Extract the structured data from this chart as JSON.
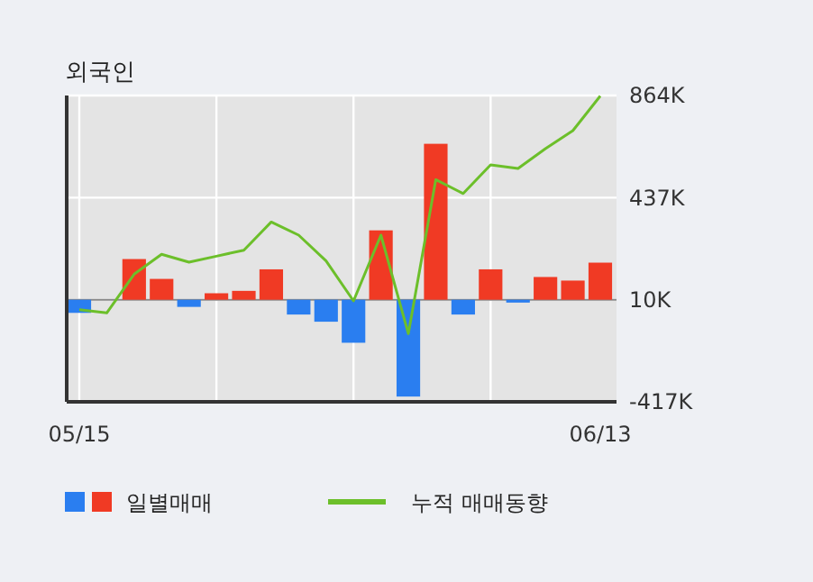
{
  "chart_data": {
    "type": "bar",
    "title": "외국인",
    "categories": [
      "05/15",
      null,
      null,
      null,
      null,
      null,
      null,
      null,
      null,
      null,
      null,
      null,
      null,
      null,
      null,
      null,
      null,
      null,
      null,
      "06/13"
    ],
    "series": [
      {
        "name": "일별매매",
        "colors": [
          "#2a7ef0",
          "#2a7ef0",
          "#f03a24",
          "#f03a24",
          "#2a7ef0",
          "#f03a24",
          "#f03a24",
          "#f03a24",
          "#2a7ef0",
          "#2a7ef0",
          "#2a7ef0",
          "#f03a24",
          "#2a7ef0",
          "#f03a24",
          "#2a7ef0",
          "#f03a24",
          "#2a7ef0",
          "#f03a24",
          "#f03a24",
          "#f03a24"
        ],
        "base": [
          10000,
          null,
          10000,
          10000,
          10000,
          10000,
          10000,
          10000,
          10000,
          10000,
          10000,
          10000,
          10000,
          10000,
          10000,
          10000,
          10000,
          10000,
          10000,
          10000
        ],
        "values": [
          -55000,
          null,
          170000,
          87000,
          -30000,
          27000,
          37000,
          127000,
          -62000,
          -92000,
          -180000,
          290000,
          -405000,
          652000,
          -62000,
          127000,
          -12000,
          95000,
          80000,
          155000
        ]
      },
      {
        "type": "line",
        "name": "누적 매매동향",
        "color": "#6cbf2a",
        "values": [
          -32000,
          -45000,
          117000,
          200000,
          167000,
          192000,
          217000,
          335000,
          280000,
          172000,
          5000,
          280000,
          -132000,
          512000,
          454000,
          574000,
          559000,
          642000,
          717000,
          862000
        ]
      }
    ],
    "ylim": [
      -417000,
      864000
    ],
    "yticks": [
      {
        "value": -417000,
        "label": "-417K"
      },
      {
        "value": 10000,
        "label": "10K"
      },
      {
        "value": 437000,
        "label": "437K"
      },
      {
        "value": 864000,
        "label": "864K"
      }
    ],
    "ref_lines": [
      {
        "axis": "y",
        "value": 10000,
        "color": "#888888"
      }
    ],
    "grid": true,
    "legend": "bottom"
  }
}
